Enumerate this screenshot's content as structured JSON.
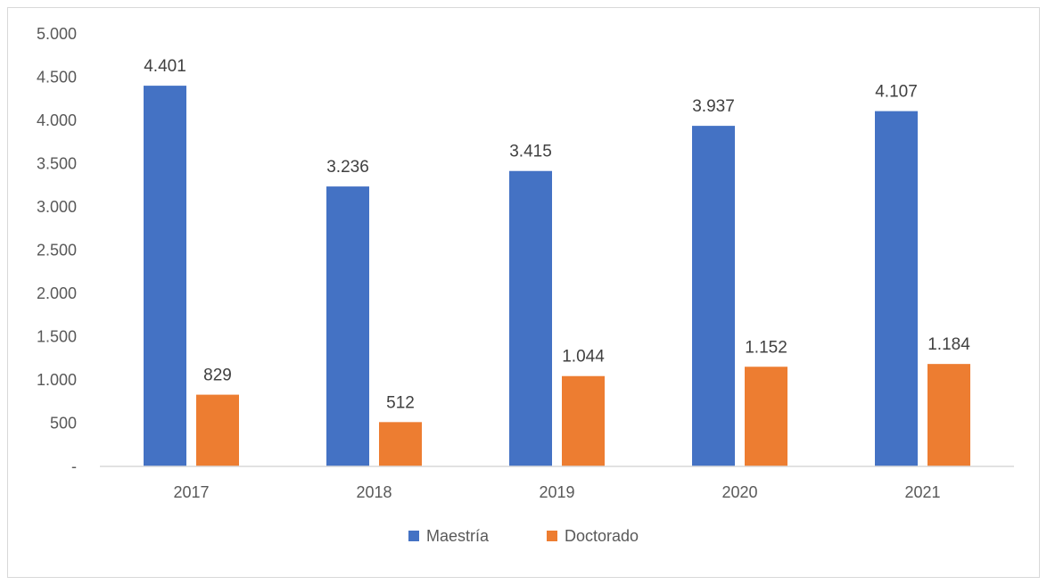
{
  "chart_data": {
    "type": "bar",
    "categories": [
      "2017",
      "2018",
      "2019",
      "2020",
      "2021"
    ],
    "series": [
      {
        "name": "Maestría",
        "color": "#4472C4",
        "values": [
          4401,
          3236,
          3415,
          3937,
          4107
        ],
        "labels": [
          "4.401",
          "3.236",
          "3.415",
          "3.937",
          "4.107"
        ]
      },
      {
        "name": "Doctorado",
        "color": "#ED7D31",
        "values": [
          829,
          512,
          1044,
          1152,
          1184
        ],
        "labels": [
          "829",
          "512",
          "1.044",
          "1.152",
          "1.184"
        ]
      }
    ],
    "ylim": [
      0,
      5000
    ],
    "yticks": [
      0,
      500,
      1000,
      1500,
      2000,
      2500,
      3000,
      3500,
      4000,
      4500,
      5000
    ],
    "ytick_labels": [
      "-",
      "500",
      "1.000",
      "1.500",
      "2.000",
      "2.500",
      "3.000",
      "3.500",
      "4.000",
      "4.500",
      "5.000"
    ],
    "grid": false,
    "legend_position": "bottom"
  }
}
